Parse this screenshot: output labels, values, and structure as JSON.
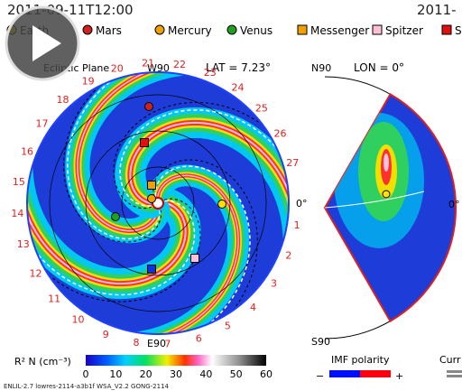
{
  "header": {
    "time": "2011-09-11T12:00",
    "time_right": "2011-"
  },
  "legend": [
    "Earth",
    "Mars",
    "Mercury",
    "Venus",
    "Messenger",
    "Spitzer",
    "S"
  ],
  "left_panel": {
    "title": "Ecliptic Plane",
    "top": "W90",
    "lat": "LAT = 7.23°",
    "bottom": "E90",
    "right": "0°",
    "ring_labels": [
      "1",
      "2",
      "3",
      "4",
      "5",
      "6",
      "7",
      "8",
      "9",
      "10",
      "11",
      "12",
      "13",
      "14",
      "15",
      "16",
      "17",
      "18",
      "19",
      "20",
      "21",
      "22",
      "23",
      "24",
      "25",
      "26",
      "27"
    ]
  },
  "right_panel": {
    "top": "N90",
    "lon": "LON = 0°",
    "bottom": "S90",
    "right": "0°"
  },
  "colorbar": {
    "label": "R² N (cm⁻³)",
    "ticks": [
      "0",
      "10",
      "20",
      "30",
      "40",
      "50",
      "60"
    ]
  },
  "imf": {
    "title": "IMF polarity",
    "minus": "−",
    "plus": "+"
  },
  "current": "Curr",
  "footer": "ENLIL-2.7 lowres-2114-a3b1f WSA_V2.2 GONG-2114"
}
